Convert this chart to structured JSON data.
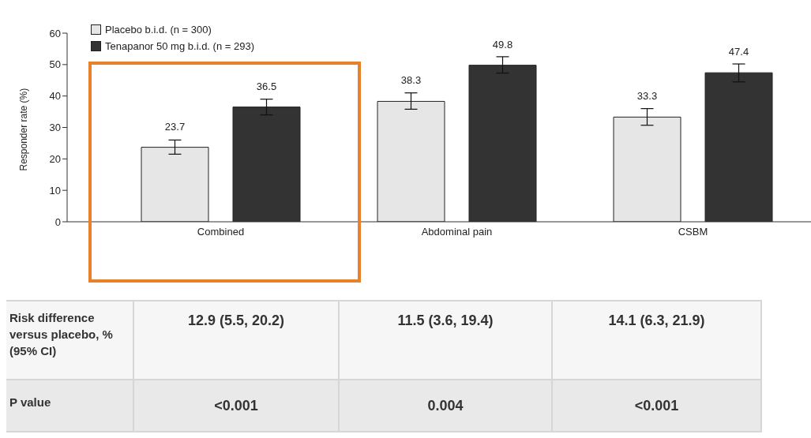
{
  "chart_data": {
    "type": "bar",
    "ylabel": "Responder rate (%)",
    "categories": [
      "Combined",
      "Abdominal pain",
      "CSBM"
    ],
    "series": [
      {
        "name": "Placebo b.i.d. (n = 300)",
        "color": "#e6e6e6",
        "values": [
          23.7,
          38.3,
          33.3
        ],
        "errors": [
          [
            21.5,
            26
          ],
          [
            35.8,
            41
          ],
          [
            30.7,
            36
          ]
        ]
      },
      {
        "name": "Tenapanor 50 mg b.i.d. (n = 293)",
        "color": "#333333",
        "values": [
          36.5,
          49.8,
          47.4
        ],
        "errors": [
          [
            34,
            39
          ],
          [
            47.3,
            52.5
          ],
          [
            44.5,
            50.2
          ]
        ]
      }
    ],
    "ylim": [
      0,
      60
    ],
    "yticks": [
      0,
      10,
      20,
      30,
      40,
      50,
      60
    ],
    "grid": false,
    "legend": "top left",
    "data_labels": true,
    "annotations": [
      "Risk difference versus placebo, % (95% CI)",
      "12.9 (5.5, 20.2)",
      "11.5 (3.6, 19.4)",
      "14.1 (6.3, 21.9)",
      "P value",
      "<0.001",
      "0.004",
      "<0.001"
    ]
  }
}
